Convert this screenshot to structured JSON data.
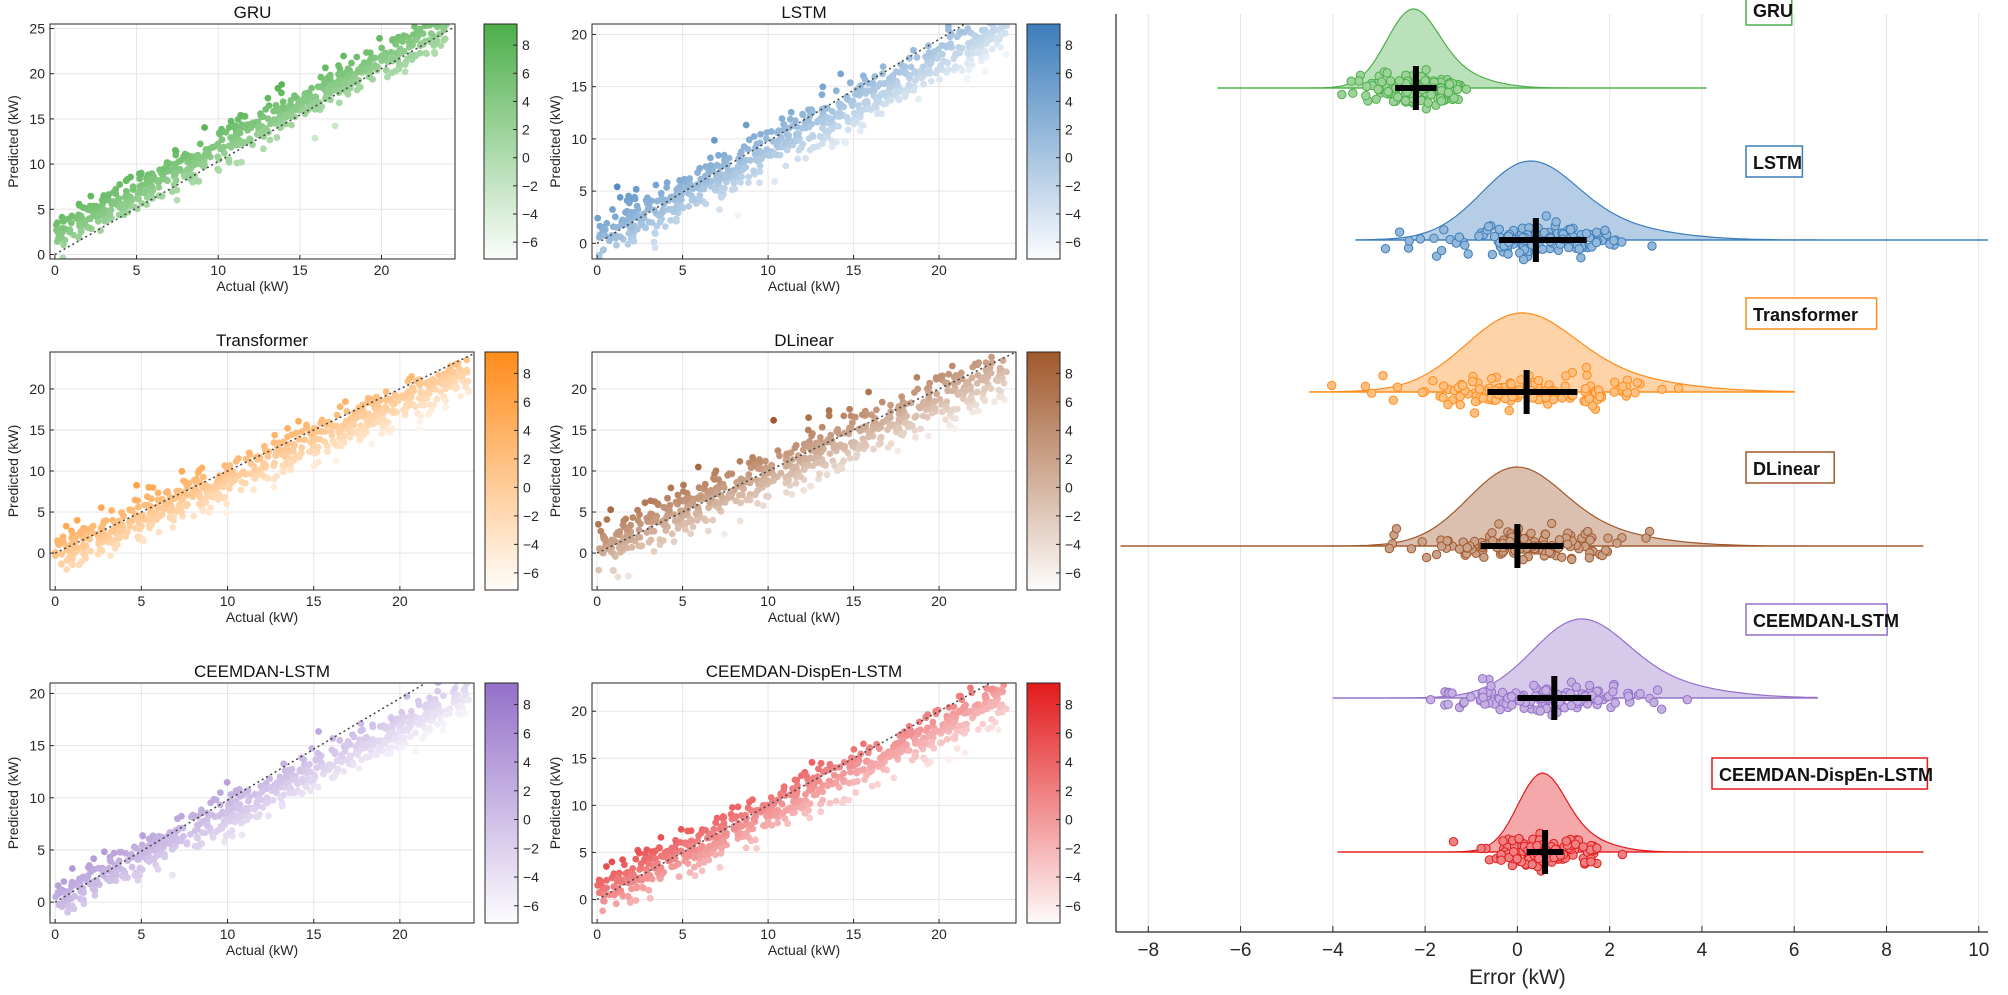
{
  "chart_data": [
    {
      "type": "scatter",
      "title": "GRU",
      "xlabel": "Actual (kW)",
      "ylabel": "Predicted (kW)",
      "xlim": [
        -0.3,
        24.5
      ],
      "ylim": [
        -0.5,
        25.5
      ],
      "xticks": [
        0,
        5,
        10,
        15,
        20
      ],
      "yticks": [
        0,
        5,
        10,
        15,
        20,
        25
      ],
      "color": "#4DAF4A",
      "colorbar": {
        "range": [
          -7.2,
          9.5
        ],
        "ticks": [
          -6,
          -4,
          -2,
          0,
          2,
          4,
          6,
          8
        ]
      },
      "fit": {
        "slope": 0.96,
        "intercept": 2.2,
        "spread": 1.1
      },
      "reference_line": {
        "x": [
          0,
          24.5
        ],
        "y": [
          0,
          25.2
        ]
      }
    },
    {
      "type": "scatter",
      "title": "LSTM",
      "xlabel": "Actual (kW)",
      "ylabel": "Predicted (kW)",
      "xlim": [
        -0.3,
        24.5
      ],
      "ylim": [
        -1.5,
        21
      ],
      "xticks": [
        0,
        5,
        10,
        15,
        20
      ],
      "yticks": [
        0,
        5,
        10,
        15,
        20
      ],
      "color": "#3C7DBB",
      "colorbar": {
        "range": [
          -7.2,
          9.5
        ],
        "ticks": [
          -6,
          -4,
          -2,
          0,
          2,
          4,
          6,
          8
        ]
      },
      "fit": {
        "slope": 0.85,
        "intercept": 0.3,
        "spread": 1.2
      },
      "reference_line": {
        "x": [
          0,
          21.5
        ],
        "y": [
          0,
          21
        ]
      }
    },
    {
      "type": "scatter",
      "title": "Transformer",
      "xlabel": "Actual (kW)",
      "ylabel": "Predicted (kW)",
      "xlim": [
        -0.3,
        24.3
      ],
      "ylim": [
        -4.5,
        24.5
      ],
      "xticks": [
        0,
        5,
        10,
        15,
        20
      ],
      "yticks": [
        0,
        5,
        10,
        15,
        20
      ],
      "color": "#FF8C1A",
      "colorbar": {
        "range": [
          -7.2,
          9.5
        ],
        "ticks": [
          -6,
          -4,
          -2,
          0,
          2,
          4,
          6,
          8
        ]
      },
      "fit": {
        "slope": 0.93,
        "intercept": -0.3,
        "spread": 1.3
      },
      "reference_line": {
        "x": [
          0,
          24.3
        ],
        "y": [
          0,
          24.3
        ]
      }
    },
    {
      "type": "scatter",
      "title": "DLinear",
      "xlabel": "Actual (kW)",
      "ylabel": "Predicted (kW)",
      "xlim": [
        -0.3,
        24.5
      ],
      "ylim": [
        -4.5,
        24.5
      ],
      "xticks": [
        0,
        5,
        10,
        15,
        20
      ],
      "yticks": [
        0,
        5,
        10,
        15,
        20
      ],
      "color": "#A0582C",
      "colorbar": {
        "range": [
          -7.2,
          9.5
        ],
        "ticks": [
          -6,
          -4,
          -2,
          0,
          2,
          4,
          6,
          8
        ]
      },
      "fit": {
        "slope": 0.9,
        "intercept": 0.5,
        "spread": 1.7
      },
      "reference_line": {
        "x": [
          0,
          24.5
        ],
        "y": [
          0,
          24.5
        ]
      }
    },
    {
      "type": "scatter",
      "title": "CEEMDAN-LSTM",
      "xlabel": "Actual (kW)",
      "ylabel": "Predicted (kW)",
      "xlim": [
        -0.3,
        24.3
      ],
      "ylim": [
        -2,
        21
      ],
      "xticks": [
        0,
        5,
        10,
        15,
        20
      ],
      "yticks": [
        0,
        5,
        10,
        15,
        20
      ],
      "color": "#9470C9",
      "colorbar": {
        "range": [
          -7.2,
          9.5
        ],
        "ticks": [
          -6,
          -4,
          -2,
          0,
          2,
          4,
          6,
          8
        ]
      },
      "fit": {
        "slope": 0.82,
        "intercept": 0.2,
        "spread": 1.0
      },
      "reference_line": {
        "x": [
          0,
          21.5
        ],
        "y": [
          0,
          21
        ]
      }
    },
    {
      "type": "scatter",
      "title": "CEEMDAN-DispEn-LSTM",
      "xlabel": "Actual (kW)",
      "ylabel": "Predicted (kW)",
      "xlim": [
        -0.3,
        24.5
      ],
      "ylim": [
        -2.5,
        23
      ],
      "xticks": [
        0,
        5,
        10,
        15,
        20
      ],
      "yticks": [
        0,
        5,
        10,
        15,
        20
      ],
      "color": "#E31A1C",
      "colorbar": {
        "range": [
          -7.2,
          9.5
        ],
        "ticks": [
          -6,
          -4,
          -2,
          0,
          2,
          4,
          6,
          8
        ]
      },
      "fit": {
        "slope": 0.88,
        "intercept": 0.4,
        "spread": 1.2
      },
      "reference_line": {
        "x": [
          0,
          23
        ],
        "y": [
          0,
          23
        ]
      }
    },
    {
      "type": "raincloud",
      "xlabel": "Error (kW)",
      "xlim": [
        -8.7,
        10.2
      ],
      "xticks": [
        -8,
        -6,
        -4,
        -2,
        0,
        2,
        4,
        6,
        8,
        10
      ],
      "series": [
        {
          "name": "GRU",
          "color": "#4DAF4A",
          "mean": -2.2,
          "range": [
            -6.5,
            4.1
          ],
          "peak": -2.3,
          "width": 0.55,
          "ci": [
            -2.65,
            -1.75
          ],
          "median": -2.2
        },
        {
          "name": "LSTM",
          "color": "#3C7DBB",
          "mean": 0.4,
          "range": [
            -3.5,
            10.2
          ],
          "peak": 0.2,
          "width": 1.0,
          "ci": [
            -0.4,
            1.5
          ],
          "median": 0.4
        },
        {
          "name": "Transformer",
          "color": "#FF8C1A",
          "mean": 0.2,
          "range": [
            -4.5,
            6.0
          ],
          "peak": 0.0,
          "width": 1.15,
          "ci": [
            -0.65,
            1.3
          ],
          "median": 0.2
        },
        {
          "name": "DLinear",
          "color": "#A0582C",
          "mean": 0.0,
          "range": [
            -8.6,
            8.8
          ],
          "peak": -0.1,
          "width": 1.0,
          "ci": [
            -0.8,
            1.0
          ],
          "median": 0.0
        },
        {
          "name": "CEEMDAN-LSTM",
          "color": "#9470C9",
          "mean": 0.8,
          "range": [
            -4.0,
            6.5
          ],
          "peak": 1.3,
          "width": 1.0,
          "ci": [
            0.0,
            1.6
          ],
          "median": 0.8
        },
        {
          "name": "CEEMDAN-DispEn-LSTM",
          "color": "#E31A1C",
          "mean": 0.6,
          "range": [
            -3.9,
            8.8
          ],
          "peak": 0.5,
          "width": 0.5,
          "ci": [
            0.2,
            1.0
          ],
          "median": 0.6
        }
      ]
    }
  ]
}
